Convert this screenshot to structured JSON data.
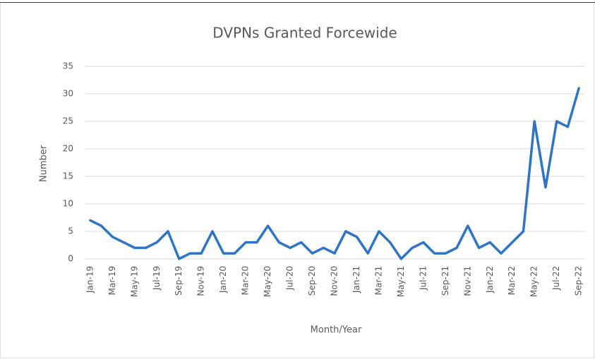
{
  "chart_data": {
    "type": "line",
    "title": "DVPNs Granted Forcewide",
    "x_label": "Month/Year",
    "y_label": "Number",
    "categories": [
      "Jan-19",
      null,
      "Mar-19",
      null,
      "May-19",
      null,
      "Jul-19",
      null,
      "Sep-19",
      null,
      "Nov-19",
      null,
      "Jan-20",
      null,
      "Mar-20",
      null,
      "May-20",
      null,
      "Jul-20",
      null,
      "Sep-20",
      null,
      "Nov-20",
      null,
      "Jan-21",
      null,
      "Mar-21",
      null,
      "May-21",
      null,
      "Jul-21",
      null,
      "Sep-21",
      null,
      "Nov-21",
      null,
      "Jan-22",
      null,
      "Mar-22",
      null,
      "May-22",
      null,
      "Jul-22",
      null,
      "Sep-22"
    ],
    "series": [
      {
        "name": "DVPNs",
        "color": "#2e75c7",
        "values": [
          7,
          6,
          4,
          3,
          2,
          2,
          3,
          5,
          0,
          1,
          1,
          5,
          1,
          1,
          3,
          3,
          6,
          3,
          2,
          3,
          1,
          2,
          1,
          5,
          4,
          1,
          5,
          3,
          0,
          2,
          3,
          1,
          1,
          2,
          6,
          2,
          3,
          1,
          3,
          5,
          25,
          13,
          25,
          24,
          31
        ]
      }
    ],
    "ylim": [
      0,
      35
    ],
    "yticks": [
      0,
      5,
      10,
      15,
      20,
      25,
      30,
      35
    ],
    "grid": true
  }
}
